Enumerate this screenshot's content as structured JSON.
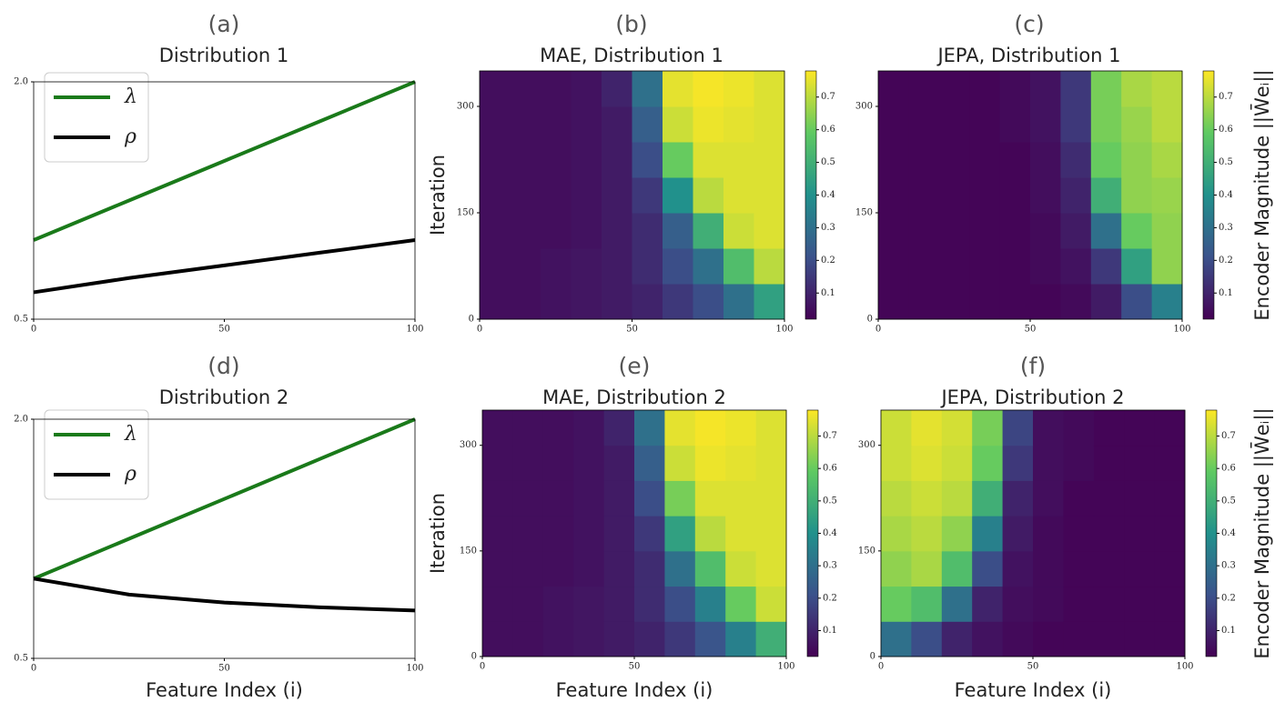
{
  "chart_data": [
    {
      "type": "line",
      "label": "(a)",
      "title": "Distribution 1",
      "x": [
        0,
        25,
        50,
        75,
        100
      ],
      "series": [
        {
          "name": "λ",
          "color": "#1a7a1a",
          "values": [
            1.0,
            1.25,
            1.5,
            1.75,
            2.0
          ]
        },
        {
          "name": "ρ",
          "color": "#000000",
          "values": [
            0.67,
            0.76,
            0.84,
            0.92,
            1.0
          ]
        }
      ],
      "xlim": [
        0,
        100
      ],
      "xticks": [
        0,
        50,
        100
      ],
      "ylim": [
        0.5,
        2.0
      ],
      "yticks": [
        0.5,
        {
          "value": 2.0,
          "label": "2.0"
        }
      ],
      "legend": "upper left"
    },
    {
      "type": "heatmap",
      "label": "(b)",
      "title": "MAE, Distribution 1",
      "ylabel": "Iteration",
      "xbins": [
        0,
        10,
        20,
        30,
        40,
        50,
        60,
        70,
        80,
        90,
        100
      ],
      "ybins": [
        0,
        50,
        100,
        150,
        200,
        250,
        300,
        350
      ],
      "z": [
        [
          0.05,
          0.05,
          0.06,
          0.07,
          0.08,
          0.1,
          0.15,
          0.2,
          0.3,
          0.45
        ],
        [
          0.05,
          0.05,
          0.06,
          0.07,
          0.08,
          0.12,
          0.2,
          0.3,
          0.55,
          0.7
        ],
        [
          0.05,
          0.05,
          0.05,
          0.06,
          0.08,
          0.12,
          0.25,
          0.5,
          0.72,
          0.74
        ],
        [
          0.05,
          0.05,
          0.05,
          0.06,
          0.08,
          0.15,
          0.4,
          0.7,
          0.74,
          0.74
        ],
        [
          0.05,
          0.05,
          0.05,
          0.06,
          0.08,
          0.2,
          0.6,
          0.74,
          0.74,
          0.74
        ],
        [
          0.05,
          0.05,
          0.05,
          0.06,
          0.08,
          0.25,
          0.72,
          0.76,
          0.75,
          0.74
        ],
        [
          0.05,
          0.05,
          0.05,
          0.06,
          0.1,
          0.3,
          0.75,
          0.77,
          0.76,
          0.74
        ]
      ],
      "xlim": [
        0,
        100
      ],
      "xticks": [
        0,
        50,
        100
      ],
      "ylim": [
        0,
        350
      ],
      "yticks": [
        0,
        150,
        300
      ],
      "colormap": "viridis",
      "clim": [
        0.02,
        0.78
      ],
      "cticks": [
        0.1,
        0.2,
        0.3,
        0.4,
        0.5,
        0.6,
        0.7
      ]
    },
    {
      "type": "heatmap",
      "label": "(c)",
      "title": "JEPA, Distribution 1",
      "colorbar_label": "Encoder Magnitude ||W̄eᵢ||",
      "xbins": [
        0,
        10,
        20,
        30,
        40,
        50,
        60,
        70,
        80,
        90,
        100
      ],
      "ybins": [
        0,
        50,
        100,
        150,
        200,
        250,
        300,
        350
      ],
      "z": [
        [
          0.03,
          0.03,
          0.03,
          0.03,
          0.03,
          0.03,
          0.04,
          0.08,
          0.2,
          0.35
        ],
        [
          0.03,
          0.03,
          0.03,
          0.03,
          0.03,
          0.04,
          0.06,
          0.15,
          0.45,
          0.65
        ],
        [
          0.03,
          0.03,
          0.03,
          0.03,
          0.03,
          0.04,
          0.08,
          0.3,
          0.6,
          0.65
        ],
        [
          0.03,
          0.03,
          0.03,
          0.03,
          0.03,
          0.05,
          0.1,
          0.5,
          0.65,
          0.66
        ],
        [
          0.03,
          0.03,
          0.03,
          0.03,
          0.03,
          0.05,
          0.12,
          0.6,
          0.65,
          0.68
        ],
        [
          0.03,
          0.03,
          0.03,
          0.03,
          0.04,
          0.06,
          0.15,
          0.62,
          0.66,
          0.7
        ],
        [
          0.03,
          0.03,
          0.03,
          0.03,
          0.04,
          0.06,
          0.15,
          0.62,
          0.68,
          0.7
        ]
      ],
      "xlim": [
        0,
        100
      ],
      "xticks": [
        0,
        50,
        100
      ],
      "ylim": [
        0,
        350
      ],
      "yticks": [
        0,
        150,
        300
      ],
      "colormap": "viridis",
      "clim": [
        0.02,
        0.78
      ],
      "cticks": [
        0.1,
        0.2,
        0.3,
        0.4,
        0.5,
        0.6,
        0.7
      ]
    },
    {
      "type": "line",
      "label": "(d)",
      "title": "Distribution 2",
      "xlabel": "Feature Index (i)",
      "x": [
        0,
        25,
        50,
        75,
        100
      ],
      "series": [
        {
          "name": "λ",
          "color": "#1a7a1a",
          "values": [
            1.0,
            1.25,
            1.5,
            1.75,
            2.0
          ]
        },
        {
          "name": "ρ",
          "color": "#000000",
          "values": [
            1.0,
            0.9,
            0.85,
            0.82,
            0.8
          ]
        }
      ],
      "xlim": [
        0,
        100
      ],
      "xticks": [
        0,
        50,
        100
      ],
      "ylim": [
        0.5,
        2.0
      ],
      "yticks": [
        0.5,
        {
          "value": 2.0,
          "label": "2.0"
        }
      ],
      "legend": "upper left"
    },
    {
      "type": "heatmap",
      "label": "(e)",
      "title": "MAE, Distribution 2",
      "ylabel": "Iteration",
      "xlabel": "Feature Index (i)",
      "xbins": [
        0,
        10,
        20,
        30,
        40,
        50,
        60,
        70,
        80,
        90,
        100
      ],
      "ybins": [
        0,
        50,
        100,
        150,
        200,
        250,
        300,
        350
      ],
      "z": [
        [
          0.05,
          0.05,
          0.06,
          0.07,
          0.08,
          0.1,
          0.15,
          0.22,
          0.35,
          0.5
        ],
        [
          0.05,
          0.05,
          0.06,
          0.07,
          0.08,
          0.12,
          0.2,
          0.35,
          0.6,
          0.72
        ],
        [
          0.05,
          0.05,
          0.05,
          0.06,
          0.08,
          0.12,
          0.3,
          0.55,
          0.72,
          0.74
        ],
        [
          0.05,
          0.05,
          0.05,
          0.06,
          0.08,
          0.15,
          0.45,
          0.7,
          0.74,
          0.74
        ],
        [
          0.05,
          0.05,
          0.05,
          0.06,
          0.08,
          0.2,
          0.62,
          0.74,
          0.74,
          0.74
        ],
        [
          0.05,
          0.05,
          0.05,
          0.06,
          0.08,
          0.25,
          0.72,
          0.76,
          0.75,
          0.74
        ],
        [
          0.05,
          0.05,
          0.05,
          0.06,
          0.1,
          0.3,
          0.75,
          0.77,
          0.76,
          0.74
        ]
      ],
      "xlim": [
        0,
        100
      ],
      "xticks": [
        0,
        50,
        100
      ],
      "ylim": [
        0,
        350
      ],
      "yticks": [
        0,
        150,
        300
      ],
      "colormap": "viridis",
      "clim": [
        0.02,
        0.78
      ],
      "cticks": [
        0.1,
        0.2,
        0.3,
        0.4,
        0.5,
        0.6,
        0.7
      ]
    },
    {
      "type": "heatmap",
      "label": "(f)",
      "title": "JEPA, Distribution 2",
      "xlabel": "Feature Index (i)",
      "colorbar_label": "Encoder Magnitude ||W̄eᵢ||",
      "xbins": [
        0,
        10,
        20,
        30,
        40,
        50,
        60,
        70,
        80,
        90,
        100
      ],
      "ybins": [
        0,
        50,
        100,
        150,
        200,
        250,
        300,
        350
      ],
      "z": [
        [
          0.3,
          0.2,
          0.1,
          0.06,
          0.04,
          0.03,
          0.03,
          0.03,
          0.03,
          0.03
        ],
        [
          0.6,
          0.55,
          0.3,
          0.1,
          0.05,
          0.04,
          0.03,
          0.03,
          0.03,
          0.03
        ],
        [
          0.65,
          0.68,
          0.55,
          0.2,
          0.06,
          0.04,
          0.03,
          0.03,
          0.03,
          0.03
        ],
        [
          0.68,
          0.7,
          0.65,
          0.35,
          0.08,
          0.04,
          0.03,
          0.03,
          0.03,
          0.03
        ],
        [
          0.7,
          0.72,
          0.7,
          0.5,
          0.1,
          0.05,
          0.03,
          0.03,
          0.03,
          0.03
        ],
        [
          0.72,
          0.74,
          0.72,
          0.6,
          0.15,
          0.05,
          0.04,
          0.03,
          0.03,
          0.03
        ],
        [
          0.72,
          0.75,
          0.73,
          0.62,
          0.18,
          0.05,
          0.04,
          0.03,
          0.03,
          0.03
        ]
      ],
      "xlim": [
        0,
        100
      ],
      "xticks": [
        0,
        50,
        100
      ],
      "ylim": [
        0,
        350
      ],
      "yticks": [
        0,
        150,
        300
      ],
      "colormap": "viridis",
      "clim": [
        0.02,
        0.78
      ],
      "cticks": [
        0.1,
        0.2,
        0.3,
        0.4,
        0.5,
        0.6,
        0.7
      ]
    }
  ]
}
